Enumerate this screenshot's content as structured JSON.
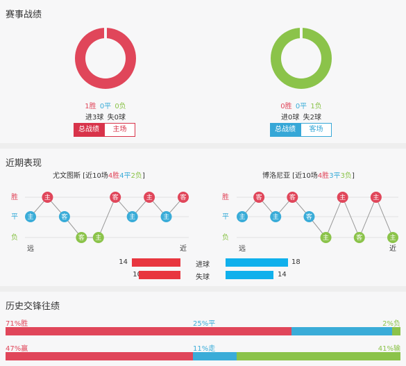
{
  "sections": {
    "record_title": "赛事战绩",
    "recent_title": "近期表现",
    "h2h_title": "历史交锋往绩"
  },
  "colors": {
    "win": "#e0465a",
    "draw": "#3aacd8",
    "loss": "#8bc34a",
    "chip_red": "#d8334a",
    "chip_blue": "#36a7d7",
    "chip_green": "#8bc34a"
  },
  "left_team": {
    "ring_color": "#e0465a",
    "wins": "1胜",
    "draws": "0平",
    "losses": "0负",
    "goals": "进3球",
    "conceded": "失0球",
    "tab_overall": "总战绩",
    "tab_home": "主场"
  },
  "right_team": {
    "ring_color": "#8bc34a",
    "wins": "0胜",
    "draws": "0平",
    "losses": "1负",
    "goals": "进0球",
    "conceded": "失2球",
    "tab_overall": "总战绩",
    "tab_away": "客场"
  },
  "recent": {
    "row_labels": {
      "win": "胜",
      "draw": "平",
      "loss": "负"
    },
    "far_label": "远",
    "near_label": "近",
    "home_chip": "主",
    "away_chip": "客",
    "left": {
      "team": "尤文图斯",
      "prefix": " [近10场",
      "wins": "4胜",
      "draws": "4平",
      "losses": "2负",
      "suffix": "]",
      "results": [
        "平",
        "胜",
        "平",
        "负",
        "负",
        "胜",
        "平",
        "胜",
        "平",
        "胜"
      ],
      "venues": [
        "主",
        "主",
        "客",
        "客",
        "主",
        "客",
        "主",
        "主",
        "主",
        "客"
      ]
    },
    "right": {
      "team": "博洛尼亚",
      "prefix": " [近10场",
      "wins": "4胜",
      "draws": "3平",
      "losses": "3负",
      "suffix": "]",
      "results": [
        "平",
        "胜",
        "平",
        "胜",
        "平",
        "负",
        "胜",
        "负",
        "胜",
        "负"
      ],
      "venues": [
        "主",
        "客",
        "主",
        "客",
        "客",
        "主",
        "主",
        "客",
        "主",
        "主"
      ]
    },
    "goals_label": "进球",
    "conceded_label": "失球",
    "left_goals": 14,
    "left_conceded": 10,
    "right_goals": 18,
    "right_conceded": 14
  },
  "h2h": {
    "row1": {
      "left": "71%胜",
      "mid": "25%平",
      "right": "2%负",
      "left_pct": 71,
      "mid_pct": 25,
      "right_pct": 2
    },
    "row2": {
      "left": "47%赢",
      "mid": "11%走",
      "right": "41%输",
      "left_pct": 47,
      "mid_pct": 11,
      "right_pct": 41
    }
  }
}
